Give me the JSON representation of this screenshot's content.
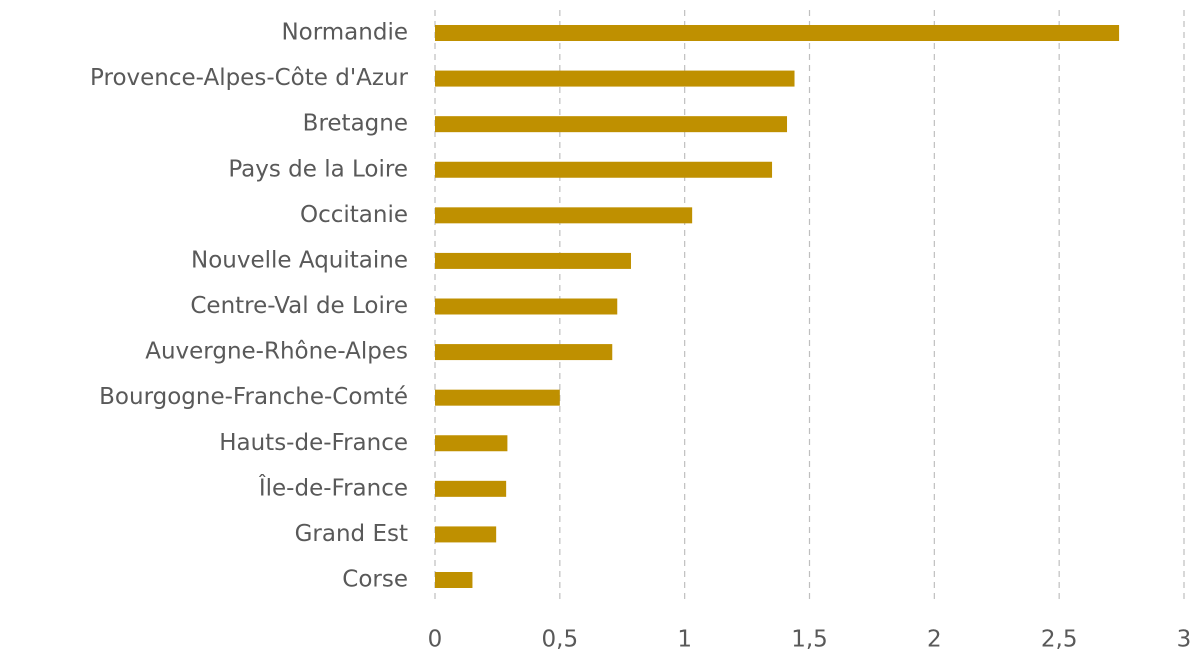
{
  "chart_data": {
    "type": "barh",
    "categories": [
      "Normandie",
      "Provence-Alpes-Côte d'Azur",
      "Bretagne",
      "Pays de la Loire",
      "Occitanie",
      "Nouvelle Aquitaine",
      "Centre-Val de Loire",
      "Auvergne-Rhône-Alpes",
      "Bourgogne-Franche-Comté",
      "Hauts-de-France",
      "Île-de-France",
      "Grand Est",
      "Corse"
    ],
    "values": [
      2.74,
      1.44,
      1.41,
      1.35,
      1.03,
      0.785,
      0.73,
      0.71,
      0.5,
      0.29,
      0.285,
      0.245,
      0.15
    ],
    "color": "#bf9000",
    "xlim": [
      0,
      3
    ],
    "xticks": [
      0,
      {
        "value": 0.5,
        "label": "0,5"
      },
      1,
      {
        "value": 1.5,
        "label": "1,5"
      },
      2,
      {
        "value": 2.5,
        "label": "2,5"
      },
      3
    ],
    "grid": true
  }
}
